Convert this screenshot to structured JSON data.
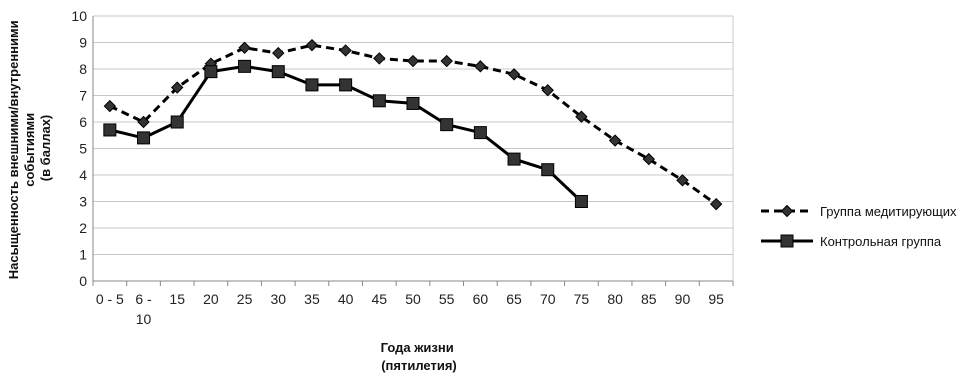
{
  "chart_data": {
    "type": "line",
    "categories": [
      "0 - 5",
      "6 - 10",
      "15",
      "20",
      "25",
      "30",
      "35",
      "40",
      "45",
      "50",
      "55",
      "60",
      "65",
      "70",
      "75",
      "80",
      "85",
      "90",
      "95"
    ],
    "series": [
      {
        "name": "Группа медитирующих",
        "line_style": "dashed",
        "marker": "diamond",
        "values": [
          6.6,
          6.0,
          7.3,
          8.2,
          8.8,
          8.6,
          8.9,
          8.7,
          8.4,
          8.3,
          8.3,
          8.1,
          7.8,
          7.2,
          6.2,
          5.3,
          4.6,
          3.8,
          2.9
        ]
      },
      {
        "name": "Контрольная группа",
        "line_style": "solid",
        "marker": "square",
        "values": [
          5.7,
          5.4,
          6.0,
          7.9,
          8.1,
          7.9,
          7.4,
          7.4,
          6.8,
          6.7,
          5.9,
          5.6,
          4.6,
          4.2,
          3.0,
          null,
          null,
          null,
          null
        ]
      }
    ],
    "xlabel_lines": [
      "Года жизни",
      "(пятилетия)"
    ],
    "ylabel_lines": [
      "Насыщенность внешними/внутренними",
      "событиями",
      "(в баллах)"
    ],
    "ylim": [
      0,
      10
    ],
    "yticks": [
      0,
      1,
      2,
      3,
      4,
      5,
      6,
      7,
      8,
      9,
      10
    ],
    "grid": "horizontal",
    "legend_position": "right",
    "colors": {
      "line": "#000000",
      "marker_fill": "#333333",
      "grid": "#c8c8c8",
      "axis": "#888888"
    }
  }
}
